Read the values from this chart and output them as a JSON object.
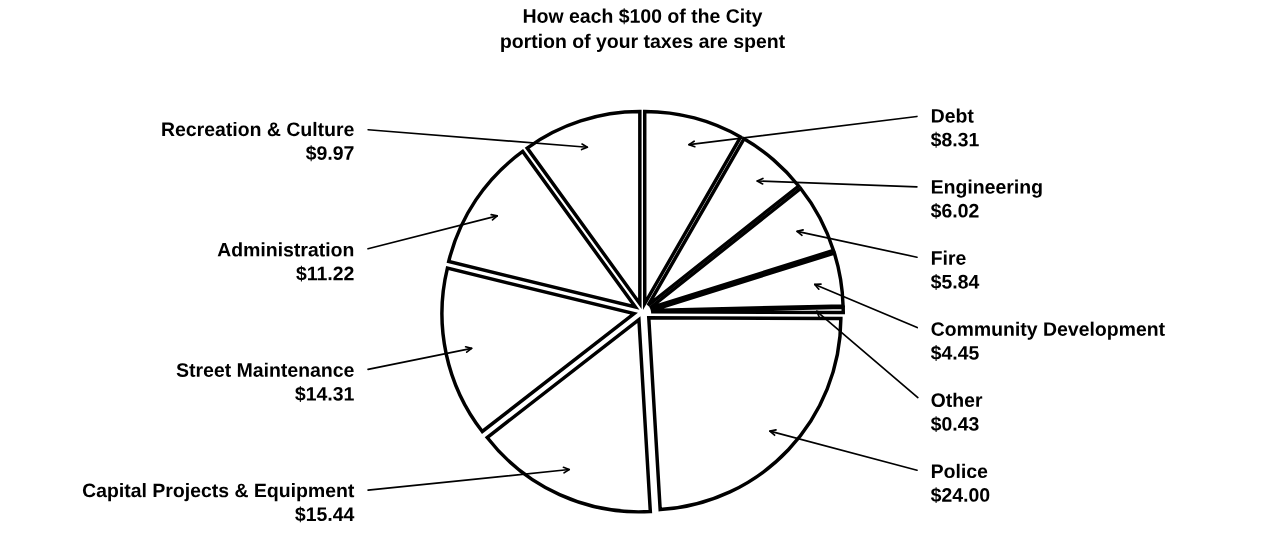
{
  "chart_data": {
    "type": "pie",
    "title": "How each $100 of the City\nportion of your taxes are spent",
    "categories": [
      "Debt",
      "Engineering",
      "Fire",
      "Community Development",
      "Other",
      "Police",
      "Capital Projects & Equipment",
      "Street Maintenance",
      "Administration",
      "Recreation & Culture"
    ],
    "values": [
      8.31,
      6.02,
      5.84,
      4.45,
      0.43,
      24.0,
      15.44,
      14.31,
      11.22,
      9.97
    ],
    "value_labels": [
      "$8.31",
      "$6.02",
      "$5.84",
      "$4.45",
      "$0.43",
      "$24.00",
      "$15.44",
      "$14.31",
      "$11.22",
      "$9.97"
    ],
    "colors": [
      "#ffffff",
      "#ffffff",
      "#ffffff",
      "#ffffff",
      "#ffffff",
      "#ffffff",
      "#ffffff",
      "#ffffff",
      "#ffffff",
      "#ffffff"
    ],
    "legend": false
  }
}
